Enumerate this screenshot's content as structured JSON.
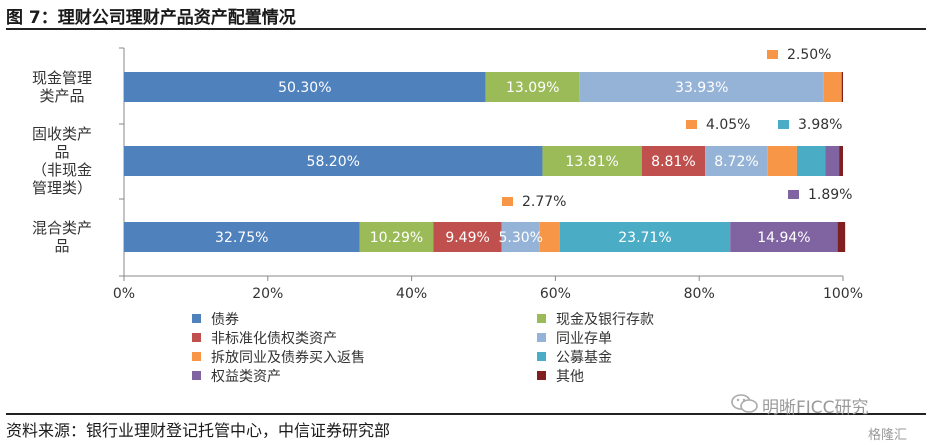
{
  "figure_title": "图 7：理财公司理财产品资产配置情况",
  "source_text": "资料来源：银行业理财登记托管中心，中信证券研究部",
  "watermark": {
    "main": "明晰FICC研究",
    "sub": "格隆汇",
    "icon": "wechat-icon"
  },
  "chart_data": {
    "type": "bar",
    "orientation": "horizontal",
    "stacked": "percent",
    "title": "",
    "xlabel": "",
    "ylabel": "",
    "xlim": [
      0,
      100
    ],
    "x_ticks": [
      "0%",
      "20%",
      "40%",
      "60%",
      "80%",
      "100%"
    ],
    "grid": false,
    "legend_position": "bottom",
    "categories": [
      [
        "现金管理",
        "类产品"
      ],
      [
        "固收类产",
        "品",
        "（非现金",
        "管理类）"
      ],
      [
        "混合类产",
        "品"
      ]
    ],
    "series": [
      {
        "name": "债券",
        "color": "#4f81bd",
        "values": [
          50.3,
          58.2,
          32.75
        ],
        "labels": [
          "50.30%",
          "58.20%",
          "32.75%"
        ]
      },
      {
        "name": "现金及银行存款",
        "color": "#9bbb59",
        "values": [
          13.09,
          13.81,
          10.29
        ],
        "labels": [
          "13.09%",
          "13.81%",
          "10.29%"
        ]
      },
      {
        "name": "非标准化债权类资产",
        "color": "#c0504d",
        "values": [
          0,
          8.81,
          9.49
        ],
        "labels": [
          "",
          "8.81%",
          "9.49%"
        ]
      },
      {
        "name": "同业存单",
        "color": "#95b3d7",
        "values": [
          33.93,
          8.72,
          5.3
        ],
        "labels": [
          "33.93%",
          "8.72%",
          "5.30%"
        ]
      },
      {
        "name": "拆放同业及债券买入返售",
        "color": "#f79646",
        "values": [
          2.5,
          4.05,
          2.77
        ],
        "labels": [
          "2.50%",
          "4.05%",
          "2.77%"
        ]
      },
      {
        "name": "公募基金",
        "color": "#4bacc6",
        "values": [
          0,
          3.98,
          23.71
        ],
        "labels": [
          "",
          "3.98%",
          "23.71%"
        ]
      },
      {
        "name": "权益类资产",
        "color": "#8064a2",
        "values": [
          0,
          1.89,
          14.94
        ],
        "labels": [
          "",
          "1.89%",
          "14.94%"
        ]
      },
      {
        "name": "其他",
        "color": "#7f1f1f",
        "values": [
          0.18,
          0.54,
          1.05
        ],
        "labels": [
          "",
          "",
          ""
        ]
      }
    ]
  }
}
